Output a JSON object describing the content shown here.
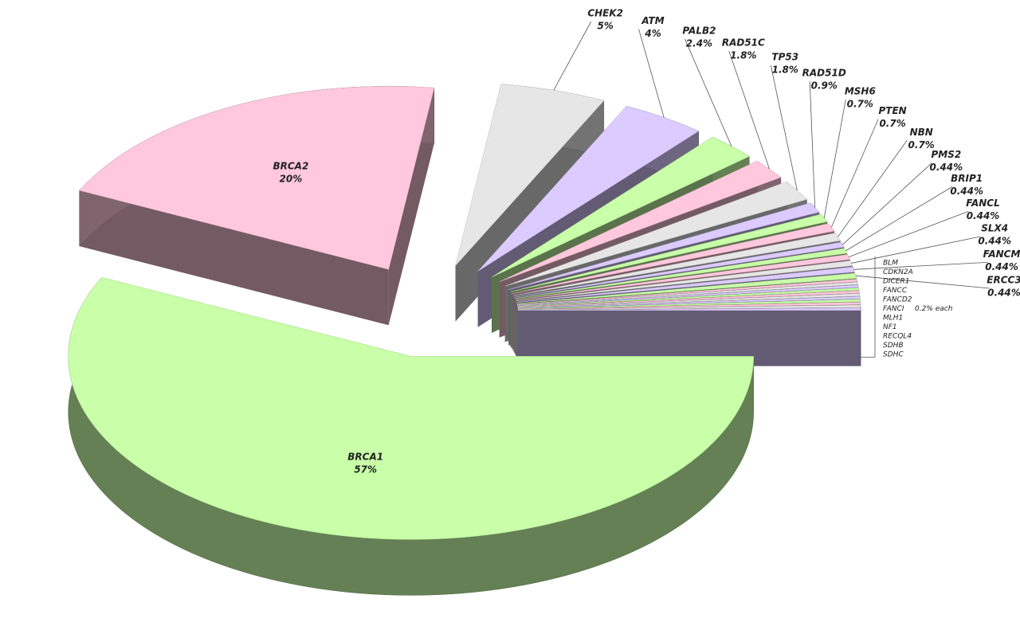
{
  "chart_data": {
    "type": "pie3d",
    "categories": [
      "BRCA1",
      "BRCA2",
      "CHEK2",
      "ATM",
      "PALB2",
      "RAD51C",
      "TP53",
      "RAD51D",
      "MSH6",
      "PTEN",
      "NBN",
      "PMS2",
      "BRIP1",
      "FANCL",
      "SLX4",
      "FANCM",
      "ERCC3",
      "BLM",
      "CDKN2A",
      "DICER1",
      "FANCC",
      "FANCD2",
      "FANCI",
      "MLH1",
      "NF1",
      "RECQL4",
      "SDHB",
      "SDHC"
    ],
    "values": [
      57,
      20,
      5,
      4,
      2.4,
      1.8,
      1.8,
      0.9,
      0.7,
      0.7,
      0.7,
      0.44,
      0.44,
      0.44,
      0.44,
      0.44,
      0.44,
      0.2,
      0.2,
      0.2,
      0.2,
      0.2,
      0.2,
      0.2,
      0.2,
      0.2,
      0.2,
      0.2
    ],
    "value_labels": [
      "57%",
      "20%",
      "5%",
      "4%",
      "2.4%",
      "1.8%",
      "1.8%",
      "0.9%",
      "0.7%",
      "0.7%",
      "0.7%",
      "0.44%",
      "0.44%",
      "0.44%",
      "0.44%",
      "0.44%",
      "0.44%",
      null,
      null,
      null,
      null,
      null,
      null,
      null,
      null,
      null,
      null,
      null
    ],
    "annotation": "0.2% each",
    "colors": [
      "#c8ffa8",
      "#ffc8dc",
      "#e6e6e6",
      "#dccbff"
    ]
  }
}
